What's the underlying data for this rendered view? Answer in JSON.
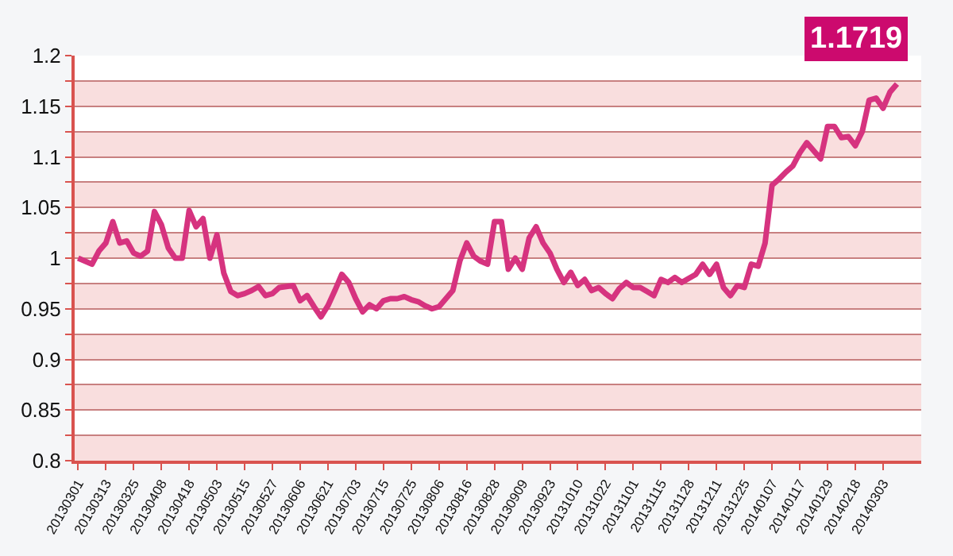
{
  "chart_data": {
    "type": "line",
    "annotations": [
      "1.1719"
    ],
    "categories": [
      "20130301",
      null,
      null,
      null,
      "20130313",
      null,
      null,
      null,
      "20130325",
      null,
      null,
      null,
      "20130408",
      null,
      null,
      null,
      "20130418",
      null,
      null,
      null,
      "20130503",
      null,
      null,
      null,
      "20130515",
      null,
      null,
      null,
      "20130527",
      null,
      null,
      null,
      "20130606",
      null,
      null,
      null,
      "20130621",
      null,
      null,
      null,
      "20130703",
      null,
      null,
      null,
      "20130715",
      null,
      null,
      null,
      "20130725",
      null,
      null,
      null,
      "20130806",
      null,
      null,
      null,
      "20130816",
      null,
      null,
      null,
      "20130828",
      null,
      null,
      null,
      "20130909",
      null,
      null,
      null,
      "20130923",
      null,
      null,
      null,
      "20131010",
      null,
      null,
      null,
      "20131022",
      null,
      null,
      null,
      "20131101",
      null,
      null,
      null,
      "20131115",
      null,
      null,
      null,
      "20131128",
      null,
      null,
      null,
      "20131211",
      null,
      null,
      null,
      "20131225",
      null,
      null,
      null,
      "20140107",
      null,
      null,
      null,
      "20140117",
      null,
      null,
      null,
      "20140129",
      null,
      null,
      null,
      "20140218",
      null,
      null,
      null,
      "20140303",
      null,
      null,
      null,
      null
    ],
    "series": [
      {
        "color": "#d6337f",
        "values": [
          1.0,
          0.997,
          0.994,
          1.007,
          1.015,
          1.036,
          1.015,
          1.017,
          1.005,
          1.002,
          1.007,
          1.046,
          1.033,
          1.01,
          1.0,
          1.0,
          1.047,
          1.031,
          1.039,
          1.0,
          1.023,
          0.985,
          0.967,
          0.963,
          0.965,
          0.968,
          0.972,
          0.963,
          0.965,
          0.971,
          0.972,
          0.973,
          0.958,
          0.963,
          0.952,
          0.942,
          0.953,
          0.968,
          0.984,
          0.976,
          0.96,
          0.947,
          0.954,
          0.95,
          0.958,
          0.96,
          0.96,
          0.962,
          0.959,
          0.957,
          0.953,
          0.95,
          0.952,
          0.96,
          0.968,
          0.997,
          1.015,
          1.002,
          0.997,
          0.994,
          1.036,
          1.036,
          0.989,
          1.0,
          0.989,
          1.02,
          1.031,
          1.015,
          1.005,
          0.989,
          0.976,
          0.986,
          0.973,
          0.979,
          0.968,
          0.971,
          0.965,
          0.96,
          0.97,
          0.976,
          0.971,
          0.971,
          0.967,
          0.963,
          0.979,
          0.976,
          0.981,
          0.976,
          0.98,
          0.984,
          0.994,
          0.984,
          0.994,
          0.971,
          0.963,
          0.973,
          0.971,
          0.994,
          0.992,
          1.015,
          1.072,
          1.078,
          1.085,
          1.091,
          1.104,
          1.114,
          1.106,
          1.098,
          1.13,
          1.13,
          1.119,
          1.12,
          1.111,
          1.125,
          1.156,
          1.158,
          1.148,
          1.164,
          1.172,
          null,
          null
        ]
      }
    ],
    "ylim": [
      0.8,
      1.2
    ],
    "yticks": [
      0.8,
      {
        "value": 0.825,
        "label": null
      },
      0.85,
      {
        "value": 0.875,
        "label": null
      },
      0.9,
      {
        "value": 0.925,
        "label": null
      },
      0.95,
      {
        "value": 0.975,
        "label": null
      },
      1,
      {
        "value": 1.025,
        "label": null
      },
      1.05,
      {
        "value": 1.075,
        "label": null
      },
      1.1,
      {
        "value": 1.125,
        "label": null
      },
      1.15,
      {
        "value": 1.175,
        "label": null
      },
      1.2
    ],
    "grid": "y",
    "marker": "none",
    "line_style": "solid"
  }
}
